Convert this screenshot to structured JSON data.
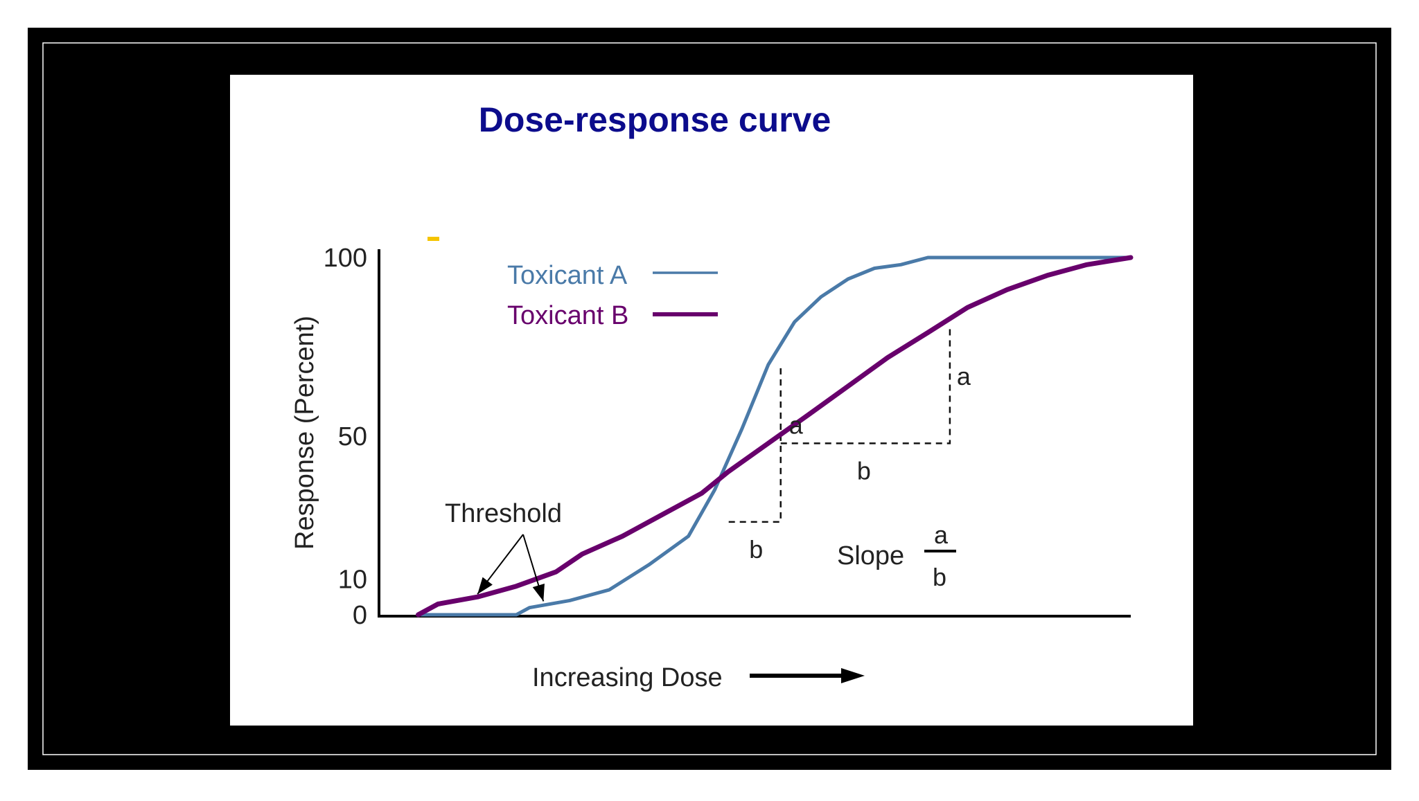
{
  "colors": {
    "page": "#ffffff",
    "frame": "#000000",
    "frame_line": "#ffffff",
    "panel": "#ffffff",
    "title": "#0c0c8c",
    "toxicant_a": "#4a7aa8",
    "toxicant_b": "#68006c",
    "ink": "#000000",
    "accent_dash": "#f5c400"
  },
  "chart_data": {
    "type": "line",
    "title": "Dose-response curve",
    "xlabel": "Increasing Dose",
    "ylabel": "Response (Percent)",
    "x_ticks": [],
    "y_ticks": [
      {
        "value": 0,
        "label": "0"
      },
      {
        "value": 10,
        "label": "10"
      },
      {
        "value": 50,
        "label": "50"
      },
      {
        "value": 100,
        "label": "100"
      }
    ],
    "xlim": [
      0,
      100
    ],
    "ylim": [
      0,
      100
    ],
    "grid": false,
    "legend_position": "top-left",
    "series": [
      {
        "name": "Toxicant A",
        "color_key": "toxicant_a",
        "x": [
          2.7,
          16.1,
          17.9,
          23.4,
          28.8,
          34.2,
          39.6,
          43.2,
          46.9,
          50.5,
          52.3,
          54.1,
          57.7,
          61.4,
          65.0,
          68.6,
          72.3,
          75.9,
          81.4,
          88.6,
          100
        ],
        "y": [
          0,
          0,
          2,
          4,
          7,
          14,
          22,
          35,
          52,
          70,
          76,
          82,
          89,
          94,
          97,
          98,
          100,
          100,
          100,
          100,
          100
        ]
      },
      {
        "name": "Toxicant B",
        "color_key": "toxicant_b",
        "x": [
          2.7,
          5.4,
          10.8,
          16.1,
          21.5,
          25.1,
          30.6,
          36.0,
          41.4,
          45.0,
          50.5,
          56.0,
          61.4,
          66.8,
          72.3,
          77.7,
          83.1,
          88.6,
          94.0,
          100
        ],
        "y": [
          0,
          3,
          5,
          8,
          12,
          17,
          22,
          28,
          34,
          40,
          48,
          56,
          64,
          72,
          79,
          86,
          91,
          95,
          98,
          100
        ]
      }
    ],
    "annotations": {
      "threshold_label": "Threshold",
      "rise_label_a": "a",
      "run_label_a": "b",
      "rise_label_b": "a",
      "run_label_b": "b",
      "slope_label": "Slope",
      "slope_numerator": "a",
      "slope_denominator": "b",
      "triangle_a": {
        "x0": 45.1,
        "x1": 52.2,
        "y0": 26,
        "y1": 70
      },
      "triangle_b": {
        "x0": 52.2,
        "x1": 75.3,
        "y0": 48,
        "y1": 80
      },
      "threshold_points": [
        {
          "x": 10.8,
          "y": 5
        },
        {
          "x": 19.8,
          "y": 3
        }
      ]
    }
  }
}
